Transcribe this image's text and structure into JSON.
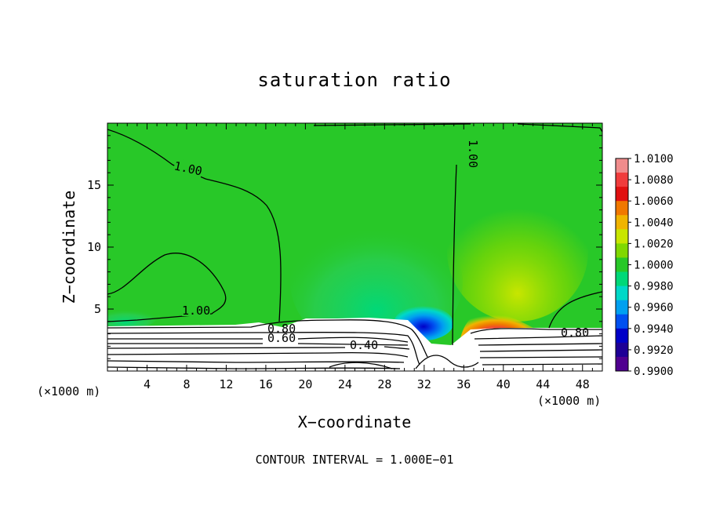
{
  "chart_data": {
    "type": "heatmap",
    "title": "saturation ratio",
    "xlabel": "X−coordinate",
    "ylabel": "Z−coordinate",
    "x_unit": "(×1000 m)",
    "xlim": [
      0,
      50
    ],
    "ylim": [
      0,
      20
    ],
    "x_ticks": [
      4,
      8,
      12,
      16,
      20,
      24,
      28,
      32,
      36,
      40,
      44,
      48
    ],
    "y_ticks": [
      5,
      10,
      15
    ],
    "colorbar": {
      "levels": [
        "1.0100",
        "1.0080",
        "1.0060",
        "1.0040",
        "1.0020",
        "1.0000",
        "0.9980",
        "0.9960",
        "0.9940",
        "0.9920",
        "0.9900"
      ],
      "colors": [
        "#f08c8c",
        "#f03c3c",
        "#e01010",
        "#f07800",
        "#f0b400",
        "#c8e600",
        "#80d800",
        "#28c828",
        "#00d878",
        "#00d8c8",
        "#00a0f0",
        "#0050f0",
        "#0000c8",
        "#1e0096",
        "#500090"
      ]
    },
    "contour_labels": [
      "1.00",
      "1.00",
      "1.00",
      "0.80",
      "0.60",
      "0.40",
      "0.80"
    ],
    "contour_interval_text": "CONTOUR INTERVAL = 1.000E−01"
  }
}
